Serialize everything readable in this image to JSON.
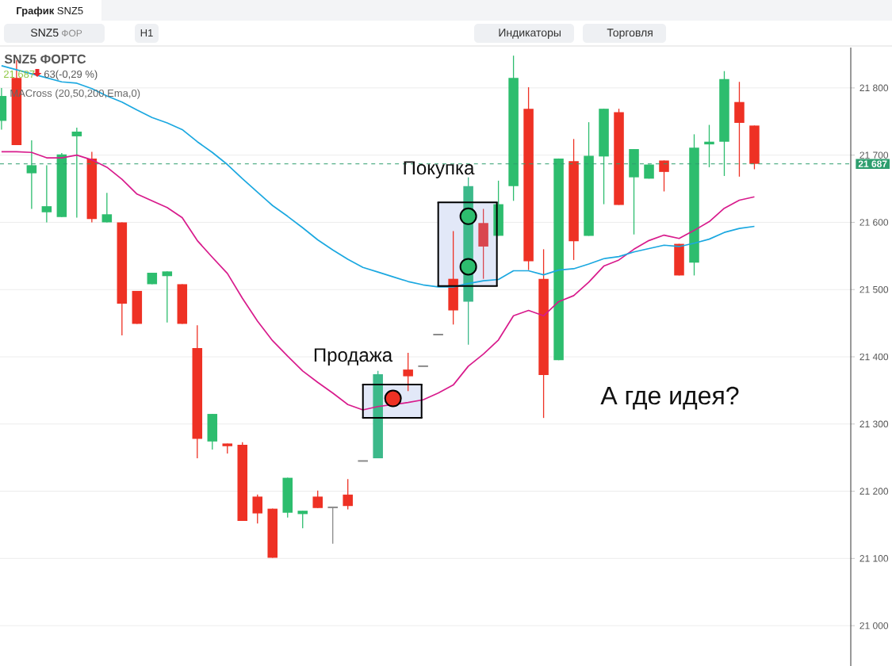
{
  "chart_data": {
    "type": "candlestick",
    "title": "SNZ5 ФОРТС",
    "subtitle": "21 687",
    "annotations": [
      "MACross (20,50,200,Ema,0)",
      "63(-0,29 %)",
      "Продажа",
      "Покупка",
      "А где идея?",
      "**График** SNZ5",
      "SNZ5",
      "ФОР",
      "H1",
      "Индикаторы",
      "Торговля"
    ],
    "categories": [
      null,
      null,
      null,
      null,
      null,
      null,
      null,
      null,
      null,
      null,
      null,
      null,
      null,
      null,
      null,
      null,
      null,
      null,
      null,
      null,
      null,
      null,
      null,
      null,
      null,
      null,
      null,
      null,
      null,
      null,
      null,
      null,
      null,
      null,
      null,
      null,
      null,
      null,
      null,
      null,
      null,
      null,
      null,
      null,
      null,
      null,
      null,
      null,
      null,
      null,
      null
    ],
    "ohlc": [
      [
        21751,
        21800,
        21738,
        21788
      ],
      [
        21815,
        21841,
        21715,
        21715
      ],
      [
        21673,
        21722,
        21620,
        21685
      ],
      [
        21615,
        21685,
        21600,
        21624
      ],
      [
        21608,
        21703,
        21608,
        21701
      ],
      [
        21728,
        21741,
        21607,
        21735
      ],
      [
        21695,
        21705,
        21600,
        21605
      ],
      [
        21600,
        21644,
        21600,
        21612
      ],
      [
        21600,
        21600,
        21432,
        21479
      ],
      [
        21498,
        21498,
        21449,
        21449
      ],
      [
        21508,
        21525,
        21508,
        21525
      ],
      [
        21520,
        21527,
        21451,
        21527
      ],
      [
        21508,
        21508,
        21449,
        21449
      ],
      [
        21413,
        21447,
        21249,
        21278
      ],
      [
        21274,
        21315,
        21262,
        21315
      ],
      [
        21271,
        21271,
        21256,
        21267
      ],
      [
        21269,
        21273,
        21156,
        21156
      ],
      [
        21192,
        21195,
        21152,
        21167
      ],
      [
        21174,
        21174,
        21101,
        21101
      ],
      [
        21168,
        21220,
        21161,
        21220
      ],
      [
        21166,
        21171,
        21145,
        21171
      ],
      [
        21192,
        21201,
        21175,
        21175
      ],
      [
        21176,
        21176,
        21122,
        21176
      ],
      [
        21195,
        21218,
        21173,
        21178
      ],
      [
        21245,
        21245,
        21245,
        21245
      ],
      [
        21249,
        21379,
        21249,
        21374
      ],
      null,
      [
        21381,
        21406,
        21349,
        21371
      ],
      [
        21386,
        21386,
        21386,
        21386
      ],
      [
        21433,
        21433,
        21433,
        21433
      ],
      [
        21516,
        21587,
        21448,
        21469
      ],
      [
        21482,
        21667,
        21418,
        21654
      ],
      [
        21599,
        21620,
        21516,
        21564
      ],
      [
        21580,
        21662,
        21580,
        21627
      ],
      [
        21654,
        21848,
        21632,
        21815
      ],
      [
        21769,
        21801,
        21529,
        21542
      ],
      [
        21516,
        21560,
        21309,
        21373
      ],
      [
        21395,
        21695,
        21395,
        21695
      ],
      [
        21691,
        21724,
        21544,
        21572
      ],
      [
        21580,
        21749,
        21580,
        21699
      ],
      [
        21698,
        21769,
        21627,
        21769
      ],
      [
        21764,
        21769,
        21626,
        21626
      ],
      [
        21667,
        21709,
        21582,
        21709
      ],
      [
        21665,
        21686,
        21665,
        21686
      ],
      [
        21692,
        21692,
        21646,
        21675
      ],
      [
        21568,
        21568,
        21521,
        21521
      ],
      [
        21540,
        21731,
        21521,
        21711
      ],
      [
        21716,
        21745,
        21682,
        21720
      ],
      [
        21720,
        21825,
        21669,
        21813
      ],
      [
        21779,
        21809,
        21668,
        21748
      ],
      [
        21744,
        21744,
        21679,
        21687
      ]
    ],
    "colors": [
      "#2dbd6e",
      "#ee3124",
      "#2dbd6e",
      "#2dbd6e",
      "#2dbd6e",
      "#2dbd6e",
      "#ee3124",
      "#2dbd6e",
      "#ee3124",
      "#ee3124",
      "#2dbd6e",
      "#2dbd6e",
      "#ee3124",
      "#ee3124",
      "#2dbd6e",
      "#ee3124",
      "#ee3124",
      "#ee3124",
      "#ee3124",
      "#2dbd6e",
      "#2dbd6e",
      "#ee3124",
      "#8a8a8a",
      "#ee3124",
      "#8a8a8a",
      "#3cb98a",
      null,
      "#ee3124",
      "#8a8a8a",
      "#8a8a8a",
      "#ee3124",
      "#3cb98a",
      "#d9464f",
      "#2dbd6e",
      "#2dbd6e",
      "#ee3124",
      "#ee3124",
      "#2dbd6e",
      "#ee3124",
      "#2dbd6e",
      "#2dbd6e",
      "#ee3124",
      "#2dbd6e",
      "#2dbd6e",
      "#ee3124",
      "#ee3124",
      "#2dbd6e",
      "#2dbd6e",
      "#2dbd6e",
      "#ee3124",
      "#ee3124"
    ],
    "series": [
      {
        "type": "line",
        "color": "#d81b8c",
        "values": [
          21705,
          21705,
          21704,
          21696,
          21696,
          21700,
          21693,
          21682,
          21664,
          21642,
          21632,
          21622,
          21607,
          21573,
          21548,
          21524,
          21487,
          21453,
          21424,
          21401,
          21379,
          21362,
          21346,
          21329,
          21321,
          21326,
          null,
          21332,
          21336,
          21346,
          21358,
          21386,
          21404,
          21425,
          21461,
          21469,
          21461,
          21482,
          21491,
          21511,
          21535,
          21544,
          21560,
          21573,
          21581,
          21576,
          21588,
          21601,
          21621,
          21633,
          21638
        ]
      },
      {
        "type": "line",
        "color": "#1ba8e0",
        "values": [
          21833,
          21827,
          21821,
          21815,
          21809,
          21807,
          21799,
          21788,
          21779,
          21767,
          21756,
          21748,
          21738,
          21720,
          21704,
          21686,
          21665,
          21645,
          21625,
          21609,
          21592,
          21574,
          21559,
          21545,
          21533,
          21526,
          21519,
          21512,
          21507,
          21504,
          21504,
          21509,
          21513,
          21515,
          21528,
          21528,
          21522,
          21529,
          21531,
          21538,
          21546,
          21549,
          21556,
          21561,
          21566,
          21564,
          21569,
          21575,
          21585,
          21591,
          21594
        ]
      },
      {
        "type": "scatter",
        "color": "#ee3124",
        "marker": "circle",
        "values": [
          null,
          null,
          null,
          null,
          null,
          null,
          null,
          null,
          null,
          null,
          null,
          null,
          null,
          null,
          null,
          null,
          null,
          null,
          null,
          null,
          null,
          null,
          null,
          null,
          null,
          null,
          21338,
          null,
          null,
          null,
          null,
          null,
          null,
          null,
          null,
          null,
          null,
          null,
          null,
          null,
          null,
          null,
          null,
          null,
          null,
          null,
          null,
          null,
          null,
          null,
          null
        ]
      },
      {
        "type": "scatter",
        "color": "#2dbd6e",
        "marker": "circle",
        "values": [
          null,
          null,
          null,
          null,
          null,
          null,
          null,
          null,
          null,
          null,
          null,
          null,
          null,
          null,
          null,
          null,
          null,
          null,
          null,
          null,
          null,
          null,
          null,
          null,
          null,
          null,
          null,
          null,
          null,
          null,
          null,
          21609,
          null,
          null,
          null,
          null,
          null,
          null,
          null,
          null,
          null,
          null,
          null,
          null,
          null,
          null,
          null,
          null,
          null,
          null,
          null
        ]
      },
      {
        "type": "scatter",
        "color": "#2dbd6e",
        "marker": "circle",
        "values": [
          null,
          null,
          null,
          null,
          null,
          null,
          null,
          null,
          null,
          null,
          null,
          null,
          null,
          null,
          null,
          null,
          null,
          null,
          null,
          null,
          null,
          null,
          null,
          null,
          null,
          null,
          null,
          null,
          null,
          null,
          null,
          21534,
          null,
          null,
          null,
          null,
          null,
          null,
          null,
          null,
          null,
          null,
          null,
          null,
          null,
          null,
          null,
          null,
          null,
          null,
          null
        ]
      }
    ],
    "ylim": [
      20940,
      21860
    ],
    "yticks": [
      {
        "value": 21000,
        "label": "21 000"
      },
      {
        "value": 21100,
        "label": "21 100"
      },
      {
        "value": 21200,
        "label": "21 200"
      },
      {
        "value": 21300,
        "label": "21 300"
      },
      {
        "value": 21400,
        "label": "21 400"
      },
      {
        "value": 21500,
        "label": "21 500"
      },
      {
        "value": 21600,
        "label": "21 600"
      },
      {
        "value": 21700,
        "label": "21 700"
      },
      {
        "value": 21800,
        "label": "21 800"
      }
    ],
    "ref_lines": [
      {
        "axis": "y",
        "value": 21687,
        "label": "21 687",
        "color": "#2e9e6e",
        "line_style": "dashed"
      }
    ],
    "grid": "y"
  }
}
